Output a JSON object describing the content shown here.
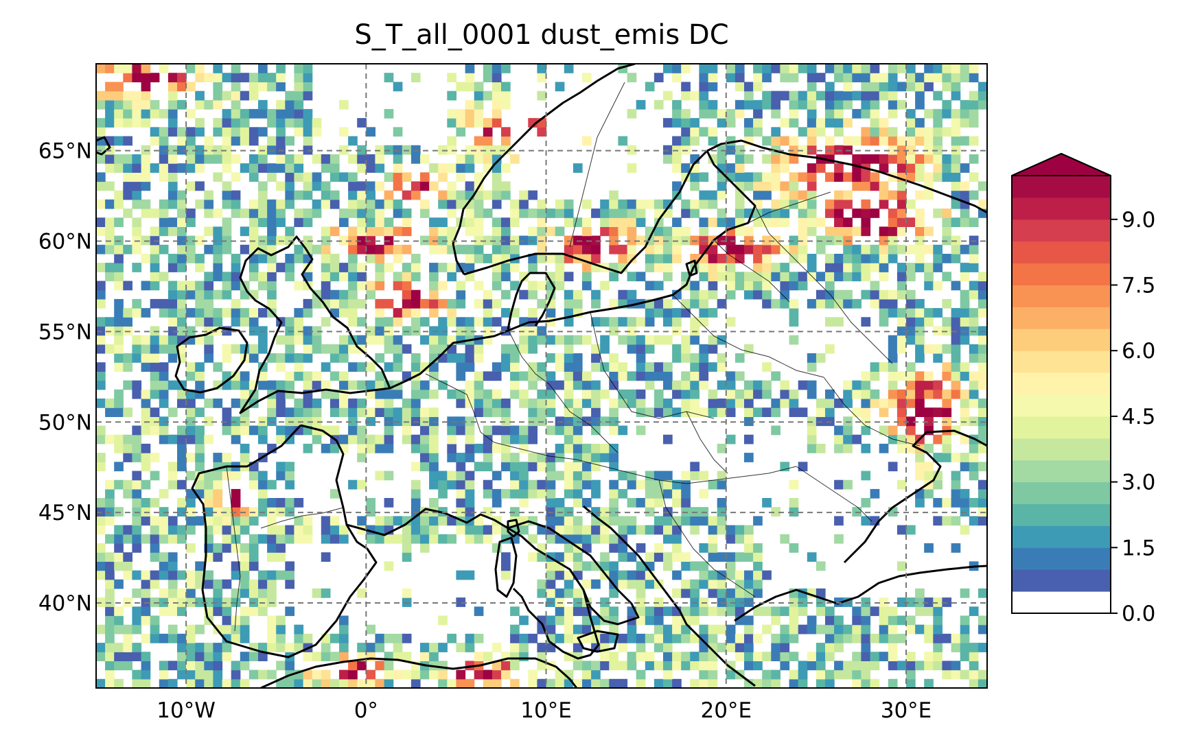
{
  "title": "S_T_all_0001 dust_emis DC",
  "map": {
    "lon_range": [
      -15,
      34.5
    ],
    "lat_range": [
      35.3,
      69.8
    ],
    "lon_ticks": [
      {
        "value": -10,
        "label": "10°W"
      },
      {
        "value": 0,
        "label": "0°"
      },
      {
        "value": 10,
        "label": "10°E"
      },
      {
        "value": 20,
        "label": "20°E"
      },
      {
        "value": 30,
        "label": "30°E"
      }
    ],
    "lat_ticks": [
      {
        "value": 40,
        "label": "40°N"
      },
      {
        "value": 45,
        "label": "45°N"
      },
      {
        "value": 50,
        "label": "50°N"
      },
      {
        "value": 55,
        "label": "55°N"
      },
      {
        "value": 60,
        "label": "60°N"
      },
      {
        "value": 65,
        "label": "65°N"
      }
    ],
    "gridlines": true,
    "field": "dust_emis",
    "colormap": "Spectral_r"
  },
  "colorbar": {
    "range": [
      0,
      10
    ],
    "extend": "max",
    "tick_labels": [
      "0.0",
      "1.5",
      "3.0",
      "4.5",
      "6.0",
      "7.5",
      "9.0"
    ],
    "tick_values": [
      0,
      1.5,
      3,
      4.5,
      6,
      7.5,
      9
    ],
    "colors": [
      "#ffffff",
      "#4860ae",
      "#3a7db6",
      "#3d9bb6",
      "#5ab5a6",
      "#7ec9a2",
      "#a3d9a3",
      "#c6e89e",
      "#e2f39e",
      "#f4f9ae",
      "#fff3ac",
      "#fee394",
      "#fdcd7c",
      "#fcb066",
      "#f99353",
      "#f37446",
      "#e65747",
      "#d53e4f",
      "#bd1f48",
      "#a60c44",
      "#9e0142"
    ]
  }
}
